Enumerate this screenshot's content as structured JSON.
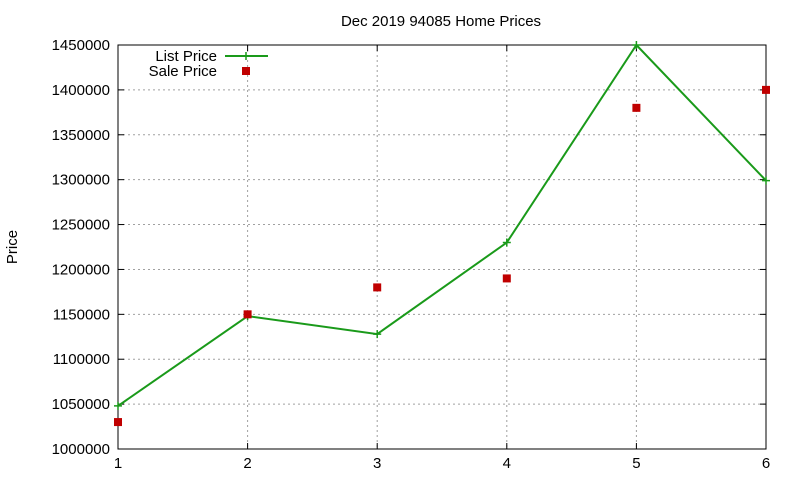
{
  "chart_data": {
    "type": "line",
    "title": "Dec 2019 94085 Home Prices",
    "xlabel": "",
    "ylabel": "Price",
    "x": [
      1,
      2,
      3,
      4,
      5,
      6
    ],
    "xlim": [
      1,
      6
    ],
    "ylim": [
      1000000,
      1450000
    ],
    "x_ticks": [
      "1",
      "2",
      "3",
      "4",
      "5",
      "6"
    ],
    "y_ticks": [
      "1000000",
      "1050000",
      "1100000",
      "1150000",
      "1200000",
      "1250000",
      "1300000",
      "1350000",
      "1400000",
      "1450000"
    ],
    "grid": true,
    "legend_position": "top-left",
    "series": [
      {
        "name": "List Price",
        "style": "line-with-plus-markers",
        "color": "#1a9a1a",
        "values": [
          1048000,
          1148000,
          1128000,
          1230000,
          1450000,
          1299000
        ]
      },
      {
        "name": "Sale Price",
        "style": "square-markers",
        "color": "#c00000",
        "values": [
          1030000,
          1150000,
          1180000,
          1190000,
          1380000,
          1400000
        ]
      }
    ]
  }
}
